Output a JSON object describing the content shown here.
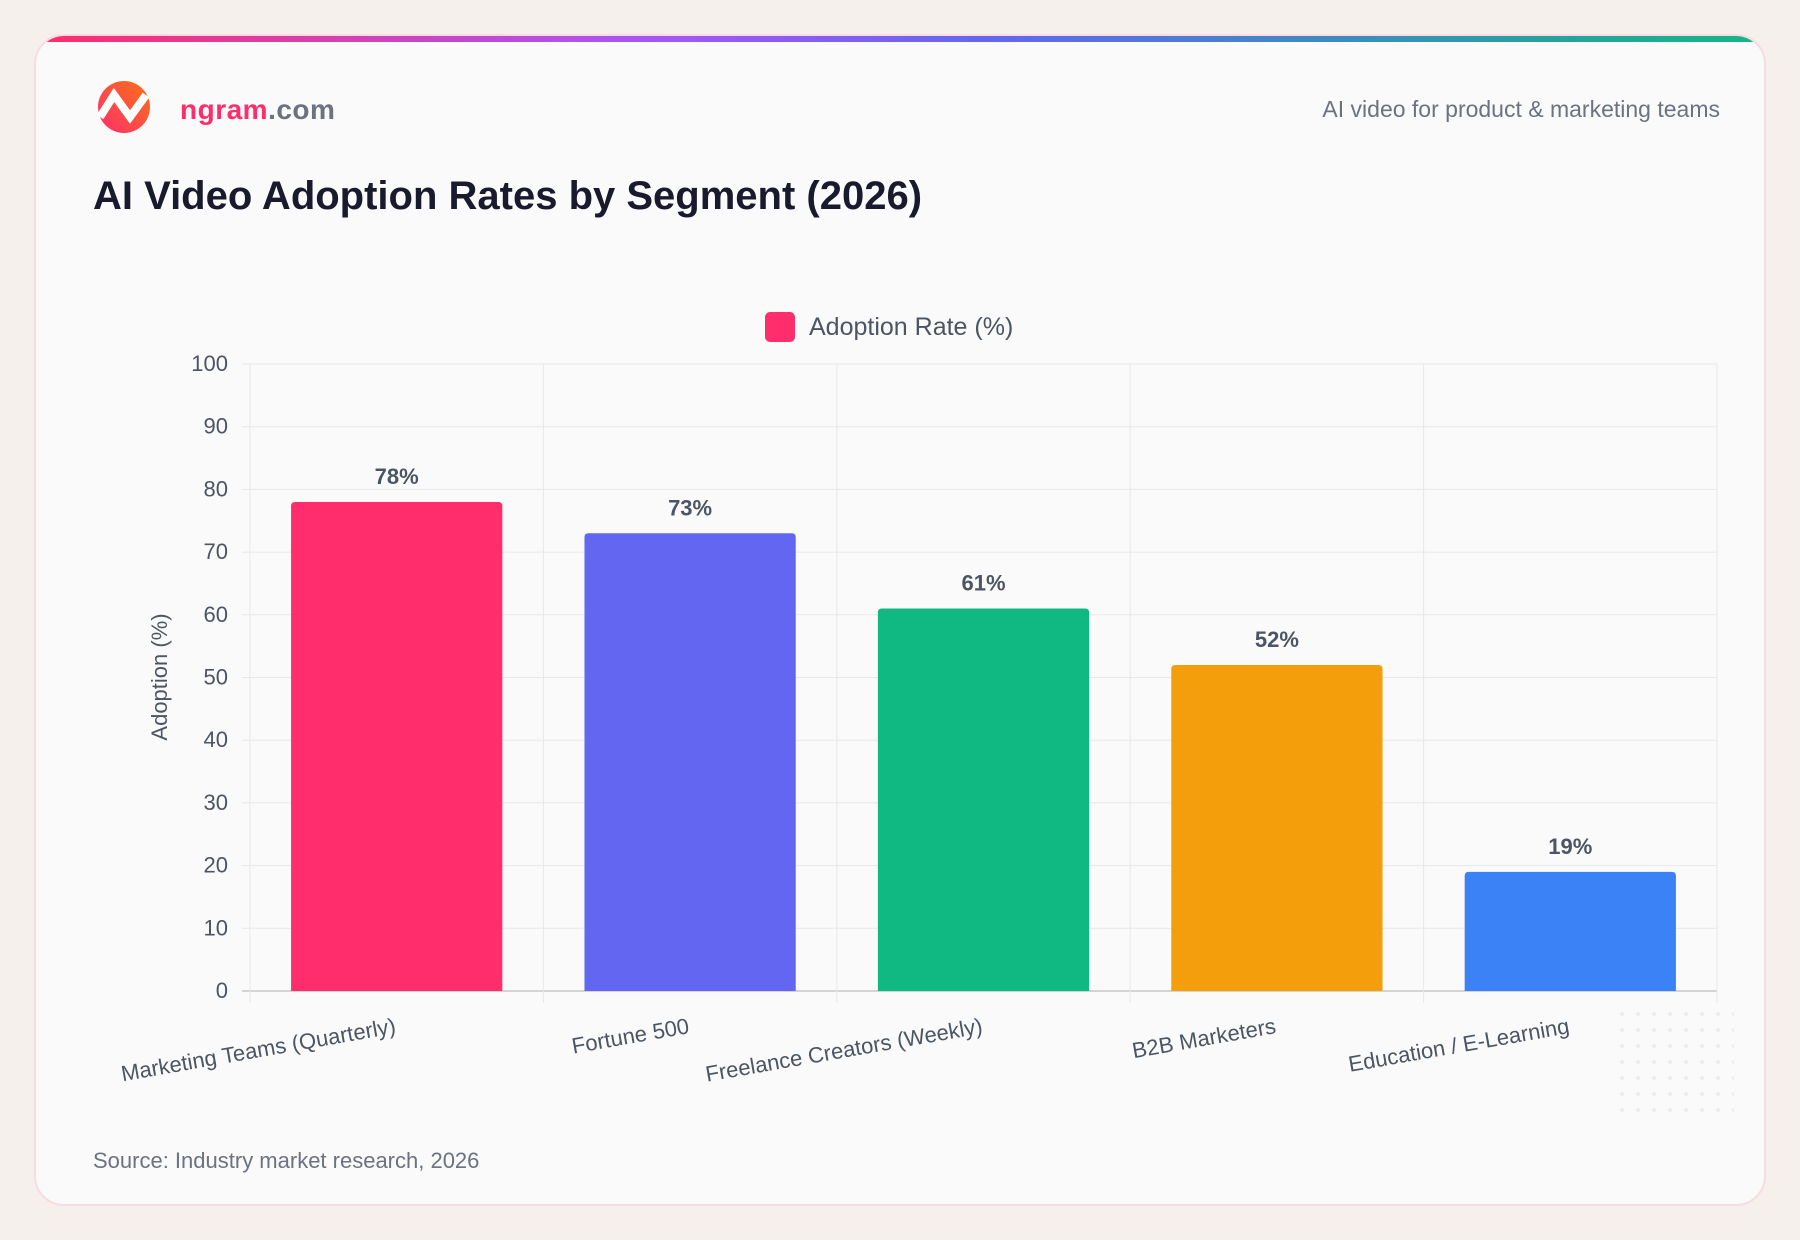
{
  "header": {
    "brand_main": "ngram",
    "brand_suffix": ".com",
    "tagline": "AI video for product & marketing teams",
    "logo_icon": "ngram-logo-icon"
  },
  "title": "AI Video Adoption Rates by Segment (2026)",
  "source": "Source: Industry market research, 2026",
  "colors": {
    "accent": "#ff2d6b",
    "gray": "#6b7280"
  },
  "chart_data": {
    "type": "bar",
    "title": "AI Video Adoption Rates by Segment (2026)",
    "categories": [
      "Marketing Teams (Quarterly)",
      "Fortune 500",
      "Freelance Creators (Weekly)",
      "B2B Marketers",
      "Education / E-Learning"
    ],
    "series": [
      {
        "name": "Adoption Rate (%)",
        "values": [
          78,
          73,
          61,
          52,
          19
        ]
      }
    ],
    "data_labels": [
      "78%",
      "73%",
      "61%",
      "52%",
      "19%"
    ],
    "bar_colors": [
      "#ff2d6b",
      "#6366f1",
      "#10b981",
      "#f59e0b",
      "#3b82f6"
    ],
    "legend_color": "#ff2d6b",
    "xlabel": "",
    "ylabel": "Adoption (%)",
    "ylim": [
      0,
      100
    ],
    "yticks": [
      "0",
      "10",
      "20",
      "30",
      "40",
      "50",
      "60",
      "70",
      "80",
      "90",
      "100"
    ],
    "grid": true,
    "legend": "top-center"
  }
}
